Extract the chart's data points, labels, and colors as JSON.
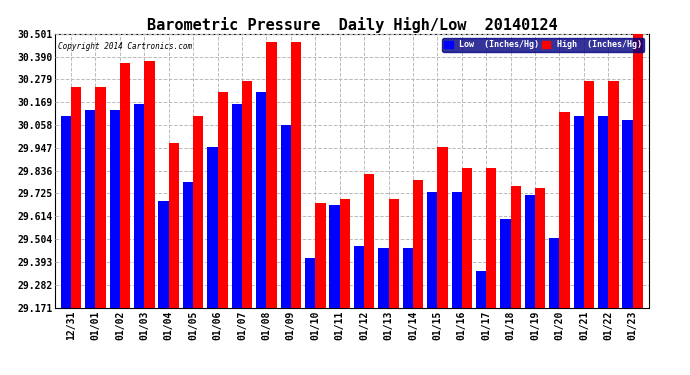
{
  "title": "Barometric Pressure  Daily High/Low  20140124",
  "copyright": "Copyright 2014 Cartronics.com",
  "categories": [
    "12/31",
    "01/01",
    "01/02",
    "01/03",
    "01/04",
    "01/05",
    "01/06",
    "01/07",
    "01/08",
    "01/09",
    "01/10",
    "01/11",
    "01/12",
    "01/13",
    "01/14",
    "01/15",
    "01/16",
    "01/17",
    "01/18",
    "01/19",
    "01/20",
    "01/21",
    "01/22",
    "01/23"
  ],
  "low_values": [
    30.1,
    30.13,
    30.13,
    30.16,
    29.69,
    29.78,
    29.95,
    30.16,
    30.22,
    30.06,
    29.41,
    29.67,
    29.47,
    29.46,
    29.46,
    29.73,
    29.73,
    29.35,
    29.6,
    29.72,
    29.51,
    30.1,
    30.1,
    30.08
  ],
  "high_values": [
    30.24,
    30.24,
    30.36,
    30.37,
    29.97,
    30.1,
    30.22,
    30.27,
    30.46,
    30.46,
    29.68,
    29.7,
    29.82,
    29.7,
    29.79,
    29.95,
    29.85,
    29.85,
    29.76,
    29.75,
    30.12,
    30.27,
    30.27,
    30.5
  ],
  "low_color": "#0000ff",
  "high_color": "#ff0000",
  "ylim_min": 29.171,
  "ylim_max": 30.501,
  "yticks": [
    29.171,
    29.282,
    29.393,
    29.504,
    29.614,
    29.725,
    29.836,
    29.947,
    30.058,
    30.169,
    30.279,
    30.39,
    30.501
  ],
  "ytick_labels": [
    "29.171",
    "29.282",
    "29.393",
    "29.504",
    "29.614",
    "29.725",
    "29.836",
    "29.947",
    "30.058",
    "30.169",
    "30.279",
    "30.390",
    "30.501"
  ],
  "background_color": "#ffffff",
  "plot_bg_color": "#ffffff",
  "grid_color": "#bbbbbb",
  "title_fontsize": 11,
  "tick_fontsize": 7,
  "bar_width": 0.42,
  "legend_low_label": "Low  (Inches/Hg)",
  "legend_high_label": "High  (Inches/Hg)"
}
